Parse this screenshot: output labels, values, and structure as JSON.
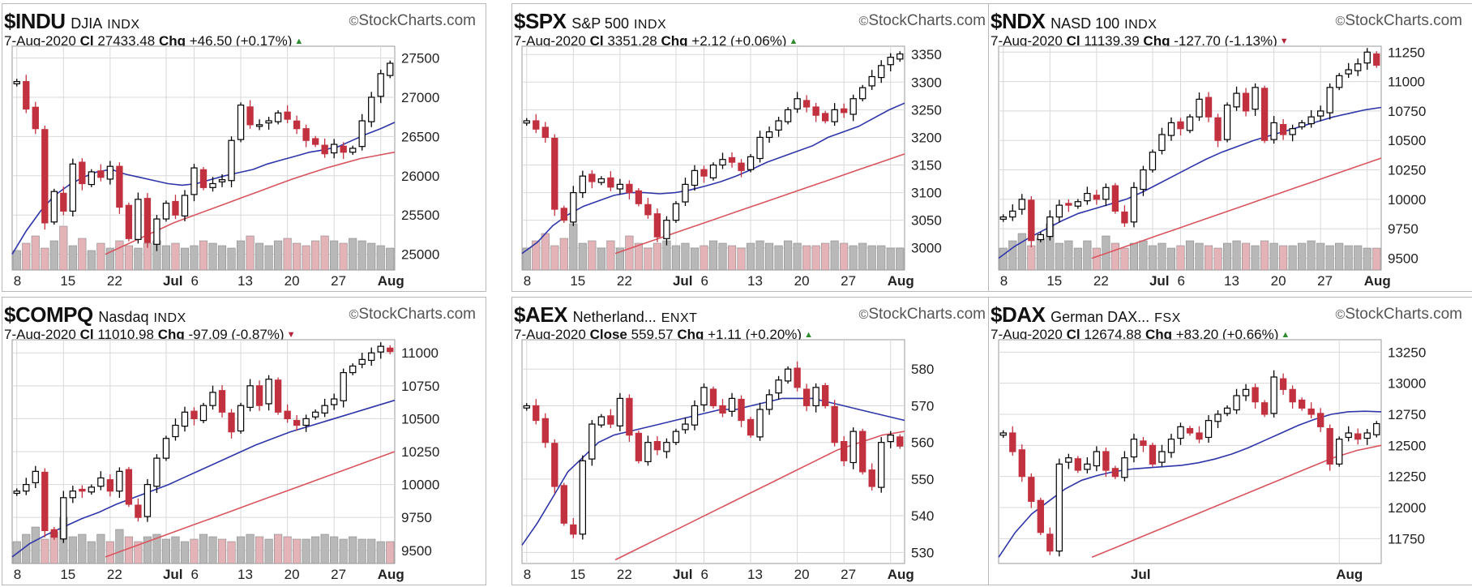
{
  "brand": "StockCharts.com",
  "colors": {
    "up": "#ffffff",
    "down": "#c2313f",
    "filled_up": "#000000",
    "ma_short": "#2e35a8",
    "ma_long": "#d9545e",
    "vol_up": "#b8b8b8",
    "vol_down": "#e3b3b8",
    "grid": "#d8d8d8"
  },
  "chart_data": [
    {
      "type": "candlestick",
      "symbol": "$INDU",
      "name": "DJIA",
      "exchange": "INDX",
      "date": "7-Aug-2020",
      "close_label": "Cl",
      "close": "27433.48",
      "chg_label": "Chg",
      "chg": "+46.50 (+0.17%)",
      "direction": "up",
      "ylim": [
        24800,
        27650
      ],
      "y_ticks": [
        25000,
        25500,
        26000,
        26500,
        27000,
        27500
      ],
      "x_ticks": [
        {
          "i": 0,
          "t": "8"
        },
        {
          "i": 5,
          "t": "15"
        },
        {
          "i": 10,
          "t": "22"
        },
        {
          "i": 16,
          "t": "Jul"
        },
        {
          "i": 19,
          "t": "6"
        },
        {
          "i": 24,
          "t": "13"
        },
        {
          "i": 29,
          "t": "20"
        },
        {
          "i": 34,
          "t": "27"
        },
        {
          "i": 39,
          "t": "Aug"
        }
      ],
      "closes": [
        27200,
        26850,
        26600,
        25400,
        25800,
        25550,
        26150,
        25900,
        26050,
        25980,
        26120,
        25600,
        25200,
        25700,
        25150,
        25450,
        25650,
        25500,
        25750,
        26100,
        25850,
        25900,
        25950,
        26450,
        26900,
        26650,
        26650,
        26700,
        26800,
        26720,
        26600,
        26450,
        26400,
        26280,
        26400,
        26300,
        26350,
        26700,
        27000,
        27300,
        27433
      ],
      "ma_short": [
        25000,
        25300,
        25550,
        25750,
        25880,
        25980,
        26050,
        26080,
        26020,
        25980,
        25940,
        25900,
        25880,
        25900,
        25950,
        26000,
        26040,
        26080,
        26150,
        26200,
        26250,
        26300,
        26330,
        26370,
        26450,
        26530,
        26600,
        26680
      ],
      "ma_long": [
        25000,
        25100,
        25200,
        25300,
        25400,
        25480,
        25560,
        25640,
        25720,
        25800,
        25880,
        25960,
        26030,
        26100,
        26160,
        26220,
        26260,
        26300
      ],
      "volume": [
        40,
        55,
        70,
        45,
        60,
        90,
        50,
        65,
        40,
        55,
        45,
        60,
        50,
        45,
        55,
        60,
        50,
        55,
        45,
        50,
        60,
        55,
        50,
        45,
        60,
        70,
        55,
        50,
        60,
        65,
        55,
        50,
        60,
        70,
        60,
        55,
        65,
        60,
        55,
        50,
        45
      ]
    },
    {
      "type": "candlestick",
      "symbol": "$SPX",
      "name": "S&P 500",
      "exchange": "INDX",
      "date": "7-Aug-2020",
      "close_label": "Cl",
      "close": "3351.28",
      "chg_label": "Chg",
      "chg": "+2.12 (+0.06%)",
      "direction": "up",
      "ylim": [
        2960,
        3365
      ],
      "y_ticks": [
        3000,
        3050,
        3100,
        3150,
        3200,
        3250,
        3300,
        3350
      ],
      "x_ticks": [
        {
          "i": 0,
          "t": "8"
        },
        {
          "i": 5,
          "t": "15"
        },
        {
          "i": 10,
          "t": "22"
        },
        {
          "i": 16,
          "t": "Jul"
        },
        {
          "i": 19,
          "t": "6"
        },
        {
          "i": 24,
          "t": "13"
        },
        {
          "i": 29,
          "t": "20"
        },
        {
          "i": 34,
          "t": "27"
        },
        {
          "i": 39,
          "t": "Aug"
        }
      ],
      "closes": [
        3230,
        3215,
        3200,
        3070,
        3050,
        3100,
        3130,
        3120,
        3125,
        3110,
        3115,
        3100,
        3080,
        3060,
        3020,
        3050,
        3080,
        3115,
        3140,
        3130,
        3150,
        3160,
        3155,
        3140,
        3165,
        3200,
        3210,
        3230,
        3250,
        3270,
        3255,
        3240,
        3230,
        3250,
        3245,
        3270,
        3290,
        3310,
        3330,
        3345,
        3351
      ],
      "ma_short": [
        2990,
        3010,
        3040,
        3060,
        3075,
        3085,
        3095,
        3100,
        3100,
        3098,
        3100,
        3105,
        3112,
        3120,
        3130,
        3142,
        3155,
        3165,
        3175,
        3185,
        3200,
        3210,
        3220,
        3235,
        3250,
        3262
      ],
      "ma_long": [
        2990,
        3005,
        3020,
        3035,
        3050,
        3065,
        3080,
        3095,
        3110,
        3125,
        3140,
        3155,
        3170
      ],
      "volume": [
        45,
        60,
        75,
        50,
        65,
        95,
        55,
        60,
        45,
        60,
        45,
        70,
        55,
        45,
        55,
        60,
        50,
        55,
        45,
        50,
        60,
        55,
        50,
        45,
        55,
        60,
        55,
        50,
        60,
        55,
        50,
        50,
        55,
        60,
        55,
        50,
        55,
        50,
        50,
        45,
        45
      ]
    },
    {
      "type": "candlestick",
      "symbol": "$NDX",
      "name": "NASD 100",
      "exchange": "INDX",
      "date": "7-Aug-2020",
      "close_label": "Cl",
      "close": "11139.39",
      "chg_label": "Chg",
      "chg": "-127.70 (-1.13%)",
      "direction": "down",
      "ylim": [
        9400,
        11300
      ],
      "y_ticks": [
        9500,
        9750,
        10000,
        10250,
        10500,
        10750,
        11000,
        11250
      ],
      "x_ticks": [
        {
          "i": 0,
          "t": "8"
        },
        {
          "i": 5,
          "t": "15"
        },
        {
          "i": 10,
          "t": "22"
        },
        {
          "i": 16,
          "t": "Jul"
        },
        {
          "i": 19,
          "t": "6"
        },
        {
          "i": 24,
          "t": "13"
        },
        {
          "i": 29,
          "t": "20"
        },
        {
          "i": 34,
          "t": "27"
        },
        {
          "i": 39,
          "t": "Aug"
        }
      ],
      "closes": [
        9850,
        9900,
        10000,
        9650,
        9700,
        9850,
        9950,
        9950,
        9980,
        10050,
        10000,
        10100,
        9900,
        9800,
        10100,
        10250,
        10400,
        10550,
        10650,
        10600,
        10700,
        10850,
        10700,
        10500,
        10800,
        10900,
        10750,
        10950,
        10500,
        10650,
        10550,
        10600,
        10650,
        10700,
        10750,
        10950,
        11050,
        11100,
        11150,
        11250,
        11139
      ],
      "ma_short": [
        9500,
        9600,
        9680,
        9750,
        9820,
        9880,
        9920,
        9960,
        10000,
        10060,
        10130,
        10200,
        10270,
        10340,
        10400,
        10450,
        10500,
        10540,
        10580,
        10620,
        10660,
        10700,
        10730,
        10760,
        10780
      ],
      "ma_long": [
        9500,
        9550,
        9600,
        9650,
        9700,
        9750,
        9800,
        9850,
        9900,
        9950,
        10000,
        10050,
        10100,
        10150,
        10200,
        10250,
        10300,
        10350
      ],
      "volume": [
        45,
        60,
        75,
        50,
        65,
        95,
        55,
        60,
        45,
        60,
        45,
        70,
        55,
        45,
        55,
        60,
        50,
        55,
        45,
        50,
        60,
        55,
        50,
        45,
        55,
        60,
        55,
        50,
        60,
        55,
        50,
        50,
        55,
        60,
        55,
        50,
        55,
        50,
        50,
        45,
        45
      ]
    },
    {
      "type": "candlestick",
      "symbol": "$COMPQ",
      "name": "Nasdaq",
      "exchange": "INDX",
      "date": "7-Aug-2020",
      "close_label": "Cl",
      "close": "11010.98",
      "chg_label": "Chg",
      "chg": "-97.09 (-0.87%)",
      "direction": "down",
      "ylim": [
        9400,
        11100
      ],
      "y_ticks": [
        9500,
        9750,
        10000,
        10250,
        10500,
        10750,
        11000
      ],
      "x_ticks": [
        {
          "i": 0,
          "t": "8"
        },
        {
          "i": 5,
          "t": "15"
        },
        {
          "i": 10,
          "t": "22"
        },
        {
          "i": 16,
          "t": "Jul"
        },
        {
          "i": 19,
          "t": "6"
        },
        {
          "i": 24,
          "t": "13"
        },
        {
          "i": 29,
          "t": "20"
        },
        {
          "i": 34,
          "t": "27"
        },
        {
          "i": 39,
          "t": "Aug"
        }
      ],
      "closes": [
        9950,
        10000,
        10100,
        9650,
        9600,
        9900,
        9950,
        9950,
        9980,
        10050,
        9950,
        10100,
        9850,
        9750,
        10000,
        10200,
        10350,
        10450,
        10550,
        10500,
        10600,
        10700,
        10550,
        10400,
        10600,
        10750,
        10600,
        10800,
        10550,
        10500,
        10450,
        10500,
        10550,
        10600,
        10650,
        10850,
        10900,
        10950,
        11000,
        11050,
        11010
      ],
      "ma_short": [
        9450,
        9550,
        9620,
        9680,
        9740,
        9790,
        9850,
        9900,
        9950,
        10000,
        10060,
        10120,
        10180,
        10240,
        10300,
        10350,
        10400,
        10440,
        10480,
        10520,
        10560,
        10600,
        10640
      ],
      "ma_long": [
        9450,
        9500,
        9550,
        9600,
        9650,
        9700,
        9750,
        9800,
        9850,
        9900,
        9950,
        10000,
        10050,
        10100,
        10150,
        10200,
        10250
      ],
      "volume": [
        45,
        60,
        75,
        50,
        65,
        95,
        55,
        60,
        45,
        60,
        45,
        70,
        55,
        45,
        55,
        60,
        50,
        55,
        45,
        50,
        60,
        55,
        50,
        45,
        55,
        60,
        55,
        50,
        60,
        55,
        50,
        50,
        55,
        60,
        55,
        50,
        55,
        50,
        50,
        45,
        45
      ]
    },
    {
      "type": "candlestick",
      "symbol": "$AEX",
      "name": "Netherland...",
      "exchange": "ENXT",
      "date": "7-Aug-2020",
      "close_label": "Close",
      "close": "559.57",
      "chg_label": "Chg",
      "chg": "+1.11 (+0.20%)",
      "direction": "up",
      "ylim": [
        527,
        588
      ],
      "y_ticks": [
        530,
        540,
        550,
        560,
        570,
        580
      ],
      "x_ticks": [
        {
          "i": 0,
          "t": "8"
        },
        {
          "i": 5,
          "t": "15"
        },
        {
          "i": 10,
          "t": "22"
        },
        {
          "i": 16,
          "t": "Jul"
        },
        {
          "i": 19,
          "t": "6"
        },
        {
          "i": 24,
          "t": "13"
        },
        {
          "i": 29,
          "t": "20"
        },
        {
          "i": 34,
          "t": "27"
        },
        {
          "i": 39,
          "t": "Aug"
        }
      ],
      "closes": [
        570,
        566,
        560,
        548,
        538,
        535,
        555,
        565,
        567,
        565,
        572,
        562,
        555,
        560,
        558,
        560,
        563,
        565,
        570,
        575,
        570,
        568,
        572,
        566,
        562,
        569,
        573,
        577,
        580,
        575,
        570,
        575,
        570,
        560,
        555,
        563,
        552,
        548,
        560,
        562,
        559
      ],
      "ma_short": [
        532,
        538,
        545,
        552,
        556,
        560,
        562,
        563,
        564,
        565,
        566,
        567,
        568,
        569,
        569,
        570,
        571,
        572,
        572,
        572,
        571,
        570,
        569,
        568,
        567,
        566
      ],
      "ma_long": [
        528,
        531,
        534,
        537,
        540,
        543,
        546,
        549,
        552,
        555,
        558,
        560,
        562,
        563
      ],
      "volume": [
        0
      ]
    },
    {
      "type": "candlestick",
      "symbol": "$DAX",
      "name": "German DAX...",
      "exchange": "FSX",
      "date": "7-Aug-2020",
      "close_label": "Cl",
      "close": "12674.88",
      "chg_label": "Chg",
      "chg": "+83.20 (+0.66%)",
      "direction": "up",
      "ylim": [
        11550,
        13350
      ],
      "y_ticks": [
        11750,
        12000,
        12250,
        12500,
        12750,
        13000,
        13250
      ],
      "x_ticks": [
        {
          "i": 14,
          "t": "Jul"
        },
        {
          "i": 36,
          "t": "Aug"
        }
      ],
      "closes": [
        12600,
        12450,
        12250,
        12050,
        11800,
        11650,
        12350,
        12400,
        12300,
        12350,
        12450,
        12300,
        12250,
        12400,
        12550,
        12500,
        12350,
        12450,
        12550,
        12650,
        12600,
        12550,
        12700,
        12750,
        12800,
        12900,
        12950,
        12850,
        12750,
        13050,
        12950,
        12850,
        12800,
        12750,
        12650,
        12350,
        12550,
        12600,
        12550,
        12600,
        12675
      ],
      "ma_short": [
        11600,
        11800,
        11950,
        12050,
        12150,
        12220,
        12260,
        12290,
        12310,
        12320,
        12330,
        12340,
        12360,
        12390,
        12430,
        12480,
        12540,
        12600,
        12660,
        12710,
        12750,
        12770,
        12775,
        12770
      ],
      "ma_long": [
        11600,
        11680,
        11760,
        11840,
        11920,
        12000,
        12080,
        12160,
        12240,
        12320,
        12400,
        12460,
        12500
      ],
      "volume": [
        0
      ]
    }
  ]
}
